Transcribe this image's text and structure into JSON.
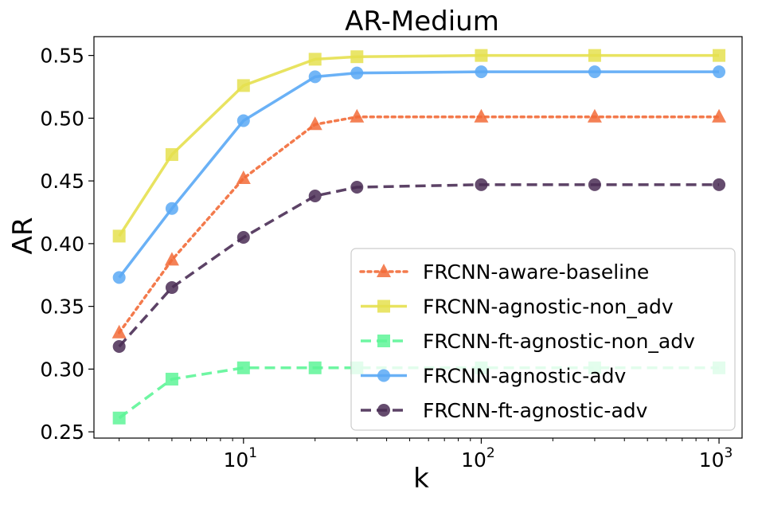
{
  "chart_data": {
    "type": "line",
    "title": "AR-Medium",
    "xlabel": "k",
    "ylabel": "AR",
    "xscale": "log",
    "xlim": [
      2.35,
      1250
    ],
    "ylim": [
      0.245,
      0.565
    ],
    "x_ticks": [
      {
        "value": 10,
        "base": "10",
        "exp": "1"
      },
      {
        "value": 100,
        "base": "10",
        "exp": "2"
      },
      {
        "value": 1000,
        "base": "10",
        "exp": "3"
      }
    ],
    "y_ticks": [
      {
        "value": 0.25,
        "label": "0.25"
      },
      {
        "value": 0.3,
        "label": "0.30"
      },
      {
        "value": 0.35,
        "label": "0.35"
      },
      {
        "value": 0.4,
        "label": "0.40"
      },
      {
        "value": 0.45,
        "label": "0.45"
      },
      {
        "value": 0.5,
        "label": "0.50"
      },
      {
        "value": 0.55,
        "label": "0.55"
      }
    ],
    "grid": false,
    "legend_position": "lower-right",
    "x": [
      3,
      5,
      10,
      20,
      30,
      100,
      300,
      1000
    ],
    "series": [
      {
        "name": "FRCNN-aware-baseline",
        "color": "#f26b38",
        "dash": "dotted",
        "marker": "triangle",
        "values": [
          0.329,
          0.387,
          0.452,
          0.495,
          0.501,
          0.501,
          0.501,
          0.501
        ]
      },
      {
        "name": "FRCNN-agnostic-non_adv",
        "color": "#e5e04f",
        "dash": "solid",
        "marker": "square",
        "values": [
          0.406,
          0.471,
          0.526,
          0.547,
          0.549,
          0.55,
          0.55,
          0.55
        ]
      },
      {
        "name": "FRCNN-ft-agnostic-non_adv",
        "color": "#5ef598",
        "dash": "dashed",
        "marker": "square",
        "values": [
          0.261,
          0.292,
          0.301,
          0.301,
          0.301,
          0.301,
          0.301,
          0.301
        ]
      },
      {
        "name": "FRCNN-agnostic-adv",
        "color": "#5aa9f5",
        "dash": "solid",
        "marker": "circle",
        "values": [
          0.373,
          0.428,
          0.498,
          0.533,
          0.536,
          0.537,
          0.537,
          0.537
        ]
      },
      {
        "name": "FRCNN-ft-agnostic-adv",
        "color": "#4a2d55",
        "dash": "dashed",
        "marker": "circle",
        "values": [
          0.318,
          0.365,
          0.405,
          0.438,
          0.445,
          0.447,
          0.447,
          0.447
        ]
      }
    ]
  }
}
